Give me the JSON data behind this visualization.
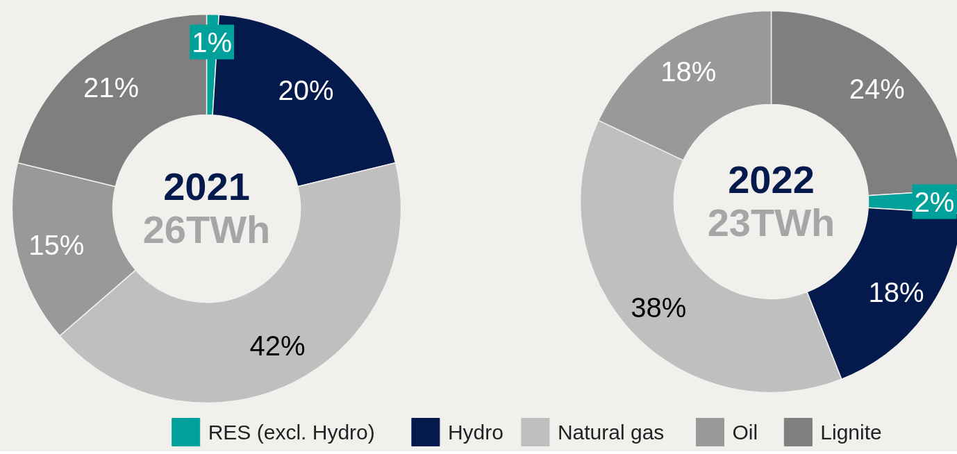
{
  "chart_data": [
    {
      "type": "donut",
      "title": "2021",
      "subtitle": "26TWh",
      "categories": [
        "RES (excl. Hydro)",
        "Hydro",
        "Natural gas",
        "Oil",
        "Lignite"
      ],
      "values": [
        1,
        20,
        42,
        15,
        21
      ],
      "value_labels": [
        "1%",
        "20%",
        "42%",
        "15%",
        "21%"
      ],
      "colors": [
        "#00a19a",
        "#041a4d",
        "#bfbfbf",
        "#999999",
        "#7f7f7f"
      ],
      "legend": "bottom"
    },
    {
      "type": "donut",
      "title": "2022",
      "subtitle": "23TWh",
      "categories": [
        null,
        null,
        null,
        null,
        null
      ],
      "values": [
        24,
        2,
        18,
        38,
        18
      ],
      "value_labels": [
        "24%",
        "2%",
        "18%",
        "38%",
        "18%"
      ],
      "colors": [
        "#7f7f7f",
        "#00a19a",
        "#041a4d",
        "#bfbfbf",
        "#999999"
      ]
    }
  ]
}
